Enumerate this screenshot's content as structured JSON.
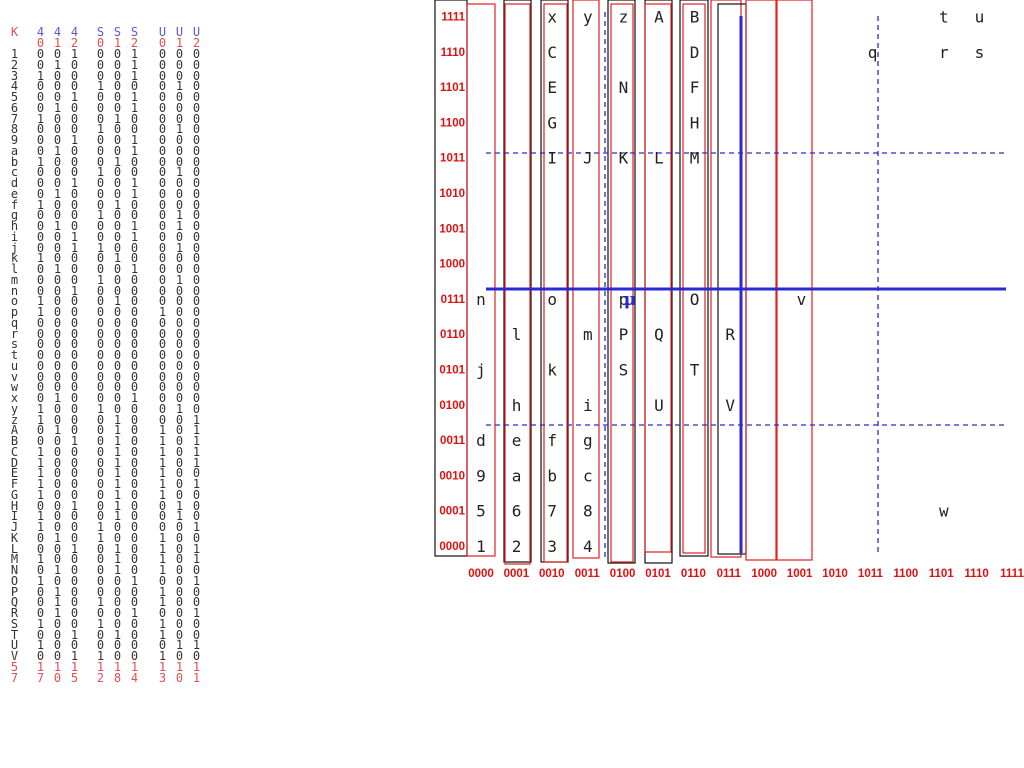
{
  "table": {
    "headers": [
      {
        "top": "K",
        "sub": "",
        "color": "#e05050"
      },
      {
        "top": "4",
        "sub": "0",
        "color": "#5a5ad8"
      },
      {
        "top": "4",
        "sub": "1",
        "color": "#5a5ad8"
      },
      {
        "top": "4",
        "sub": "2",
        "color": "#5a5ad8"
      },
      {
        "top": "S",
        "sub": "0",
        "color": "#5a5ad8"
      },
      {
        "top": "S",
        "sub": "1",
        "color": "#5a5ad8"
      },
      {
        "top": "S",
        "sub": "2",
        "color": "#5a5ad8"
      },
      {
        "top": "U",
        "sub": "0",
        "color": "#5a5ad8"
      },
      {
        "top": "U",
        "sub": "1",
        "color": "#5a5ad8"
      },
      {
        "top": "U",
        "sub": "2",
        "color": "#5a5ad8"
      }
    ],
    "rows": [
      [
        "1",
        "0",
        "0",
        "1",
        "0",
        "0",
        "1",
        "0",
        "0",
        "0"
      ],
      [
        "2",
        "0",
        "1",
        "0",
        "0",
        "0",
        "1",
        "0",
        "0",
        "0"
      ],
      [
        "3",
        "1",
        "0",
        "0",
        "0",
        "0",
        "1",
        "0",
        "0",
        "0"
      ],
      [
        "4",
        "0",
        "0",
        "0",
        "1",
        "0",
        "0",
        "0",
        "1",
        "0"
      ],
      [
        "5",
        "0",
        "0",
        "1",
        "0",
        "0",
        "1",
        "0",
        "0",
        "0"
      ],
      [
        "6",
        "0",
        "1",
        "0",
        "0",
        "0",
        "1",
        "0",
        "0",
        "0"
      ],
      [
        "7",
        "1",
        "0",
        "0",
        "0",
        "1",
        "0",
        "0",
        "0",
        "0"
      ],
      [
        "8",
        "0",
        "0",
        "0",
        "1",
        "0",
        "0",
        "0",
        "1",
        "0"
      ],
      [
        "9",
        "0",
        "0",
        "1",
        "0",
        "0",
        "1",
        "0",
        "0",
        "0"
      ],
      [
        "a",
        "0",
        "1",
        "0",
        "0",
        "0",
        "1",
        "0",
        "0",
        "0"
      ],
      [
        "b",
        "1",
        "0",
        "0",
        "0",
        "1",
        "0",
        "0",
        "0",
        "0"
      ],
      [
        "c",
        "0",
        "0",
        "0",
        "1",
        "0",
        "0",
        "0",
        "1",
        "0"
      ],
      [
        "d",
        "0",
        "0",
        "1",
        "0",
        "0",
        "1",
        "0",
        "0",
        "0"
      ],
      [
        "e",
        "0",
        "1",
        "0",
        "0",
        "0",
        "1",
        "0",
        "0",
        "0"
      ],
      [
        "f",
        "1",
        "0",
        "0",
        "0",
        "1",
        "0",
        "0",
        "0",
        "0"
      ],
      [
        "g",
        "0",
        "0",
        "0",
        "1",
        "0",
        "0",
        "0",
        "1",
        "0"
      ],
      [
        "h",
        "0",
        "1",
        "0",
        "0",
        "0",
        "1",
        "0",
        "1",
        "0"
      ],
      [
        "i",
        "0",
        "0",
        "1",
        "0",
        "0",
        "1",
        "0",
        "0",
        "0"
      ],
      [
        "j",
        "0",
        "0",
        "1",
        "1",
        "0",
        "0",
        "0",
        "1",
        "0"
      ],
      [
        "k",
        "1",
        "0",
        "0",
        "0",
        "1",
        "0",
        "0",
        "0",
        "0"
      ],
      [
        "l",
        "0",
        "1",
        "0",
        "0",
        "0",
        "1",
        "0",
        "0",
        "0"
      ],
      [
        "m",
        "0",
        "0",
        "0",
        "1",
        "0",
        "0",
        "0",
        "1",
        "0"
      ],
      [
        "n",
        "0",
        "0",
        "1",
        "0",
        "0",
        "0",
        "0",
        "0",
        "0"
      ],
      [
        "o",
        "1",
        "0",
        "0",
        "0",
        "1",
        "0",
        "0",
        "0",
        "0"
      ],
      [
        "p",
        "1",
        "0",
        "0",
        "0",
        "0",
        "0",
        "1",
        "0",
        "0"
      ],
      [
        "q",
        "0",
        "0",
        "0",
        "0",
        "0",
        "0",
        "0",
        "0",
        "0"
      ],
      [
        "r",
        "0",
        "0",
        "0",
        "0",
        "0",
        "0",
        "0",
        "0",
        "0"
      ],
      [
        "s",
        "0",
        "0",
        "0",
        "0",
        "0",
        "0",
        "0",
        "0",
        "0"
      ],
      [
        "t",
        "0",
        "0",
        "0",
        "0",
        "0",
        "0",
        "0",
        "0",
        "0"
      ],
      [
        "u",
        "0",
        "0",
        "0",
        "0",
        "0",
        "0",
        "0",
        "0",
        "0"
      ],
      [
        "v",
        "0",
        "0",
        "0",
        "0",
        "0",
        "0",
        "0",
        "0",
        "0"
      ],
      [
        "w",
        "0",
        "0",
        "0",
        "0",
        "0",
        "0",
        "0",
        "0",
        "0"
      ],
      [
        "x",
        "0",
        "1",
        "0",
        "0",
        "0",
        "1",
        "0",
        "0",
        "0"
      ],
      [
        "y",
        "1",
        "0",
        "0",
        "1",
        "0",
        "0",
        "0",
        "1",
        "0"
      ],
      [
        "z",
        "1",
        "0",
        "0",
        "0",
        "1",
        "0",
        "0",
        "0",
        "1"
      ],
      [
        "A",
        "0",
        "1",
        "0",
        "0",
        "1",
        "0",
        "1",
        "0",
        "1"
      ],
      [
        "B",
        "0",
        "0",
        "1",
        "0",
        "1",
        "0",
        "1",
        "0",
        "1"
      ],
      [
        "C",
        "1",
        "0",
        "0",
        "0",
        "1",
        "0",
        "1",
        "0",
        "1"
      ],
      [
        "D",
        "1",
        "0",
        "0",
        "0",
        "1",
        "0",
        "1",
        "0",
        "1"
      ],
      [
        "E",
        "1",
        "0",
        "0",
        "0",
        "1",
        "0",
        "1",
        "0",
        "0"
      ],
      [
        "F",
        "1",
        "0",
        "0",
        "0",
        "1",
        "0",
        "1",
        "0",
        "1"
      ],
      [
        "G",
        "1",
        "0",
        "0",
        "0",
        "1",
        "0",
        "1",
        "0",
        "0"
      ],
      [
        "H",
        "0",
        "0",
        "1",
        "0",
        "1",
        "0",
        "0",
        "1",
        "0"
      ],
      [
        "I",
        "1",
        "0",
        "0",
        "0",
        "1",
        "0",
        "0",
        "1",
        "0"
      ],
      [
        "J",
        "1",
        "0",
        "0",
        "1",
        "0",
        "0",
        "0",
        "0",
        "1"
      ],
      [
        "K",
        "0",
        "1",
        "0",
        "1",
        "0",
        "0",
        "1",
        "0",
        "0"
      ],
      [
        "L",
        "0",
        "0",
        "1",
        "0",
        "1",
        "0",
        "1",
        "0",
        "1"
      ],
      [
        "M",
        "1",
        "0",
        "0",
        "0",
        "1",
        "0",
        "1",
        "0",
        "1"
      ],
      [
        "N",
        "0",
        "1",
        "0",
        "0",
        "1",
        "0",
        "1",
        "0",
        "0"
      ],
      [
        "O",
        "1",
        "0",
        "0",
        "0",
        "0",
        "1",
        "0",
        "0",
        "1"
      ],
      [
        "P",
        "0",
        "1",
        "0",
        "0",
        "0",
        "0",
        "1",
        "0",
        "0"
      ],
      [
        "Q",
        "0",
        "1",
        "0",
        "1",
        "0",
        "0",
        "1",
        "0",
        "0"
      ],
      [
        "R",
        "0",
        "1",
        "0",
        "0",
        "0",
        "1",
        "0",
        "0",
        "1"
      ],
      [
        "S",
        "1",
        "0",
        "0",
        "1",
        "0",
        "0",
        "1",
        "0",
        "0"
      ],
      [
        "T",
        "0",
        "0",
        "1",
        "0",
        "1",
        "0",
        "1",
        "0",
        "0"
      ],
      [
        "U",
        "1",
        "0",
        "0",
        "0",
        "0",
        "0",
        "0",
        "1",
        "1"
      ],
      [
        "V",
        "0",
        "0",
        "1",
        "1",
        "0",
        "0",
        "1",
        "0",
        "0"
      ]
    ],
    "footer": [
      {
        "a": "5",
        "b": "7",
        "color": "#e05050"
      },
      {
        "a": "1",
        "b": "7",
        "color": "#e05050"
      },
      {
        "a": "1",
        "b": "0",
        "color": "#e05050"
      },
      {
        "a": "1",
        "b": "5",
        "color": "#e05050"
      },
      {
        "a": "1",
        "b": "2",
        "color": "#e05050"
      },
      {
        "a": "1",
        "b": "8",
        "color": "#e05050"
      },
      {
        "a": "1",
        "b": "4",
        "color": "#e05050"
      },
      {
        "a": "1",
        "b": "3",
        "color": "#e05050"
      },
      {
        "a": "1",
        "b": "0",
        "color": "#e05050"
      },
      {
        "a": "1",
        "b": "1",
        "color": "#e05050"
      }
    ]
  },
  "grid": {
    "row_codes": [
      "0000",
      "0001",
      "0010",
      "0011",
      "0100",
      "0101",
      "0110",
      "0111",
      "1000",
      "1001",
      "1010",
      "1011",
      "1100",
      "1101",
      "1110",
      "1111"
    ],
    "col_codes": [
      "0000",
      "0001",
      "0010",
      "0011",
      "0100",
      "0101",
      "0110",
      "0111",
      "1000",
      "1001",
      "1010",
      "1011",
      "1100",
      "1101",
      "1110",
      "1111"
    ],
    "code_color": "#e01010",
    "cells": [
      {
        "t": "1",
        "c": 0,
        "r": 0
      },
      {
        "t": "5",
        "c": 0,
        "r": 1
      },
      {
        "t": "9",
        "c": 0,
        "r": 2
      },
      {
        "t": "d",
        "c": 0,
        "r": 3
      },
      {
        "t": "j",
        "c": 0,
        "r": 5
      },
      {
        "t": "n",
        "c": 0,
        "r": 7
      },
      {
        "t": "2",
        "c": 1,
        "r": 0
      },
      {
        "t": "6",
        "c": 1,
        "r": 1
      },
      {
        "t": "a",
        "c": 1,
        "r": 2
      },
      {
        "t": "e",
        "c": 1,
        "r": 3
      },
      {
        "t": "h",
        "c": 1,
        "r": 4
      },
      {
        "t": "l",
        "c": 1,
        "r": 6
      },
      {
        "t": "3",
        "c": 2,
        "r": 0
      },
      {
        "t": "7",
        "c": 2,
        "r": 1
      },
      {
        "t": "b",
        "c": 2,
        "r": 2
      },
      {
        "t": "f",
        "c": 2,
        "r": 3
      },
      {
        "t": "k",
        "c": 2,
        "r": 5
      },
      {
        "t": "o",
        "c": 2,
        "r": 7
      },
      {
        "t": "I",
        "c": 2,
        "r": 11
      },
      {
        "t": "G",
        "c": 2,
        "r": 12
      },
      {
        "t": "E",
        "c": 2,
        "r": 13
      },
      {
        "t": "C",
        "c": 2,
        "r": 14
      },
      {
        "t": "x",
        "c": 2,
        "r": 15
      },
      {
        "t": "4",
        "c": 3,
        "r": 0
      },
      {
        "t": "8",
        "c": 3,
        "r": 1
      },
      {
        "t": "c",
        "c": 3,
        "r": 2
      },
      {
        "t": "g",
        "c": 3,
        "r": 3
      },
      {
        "t": "i",
        "c": 3,
        "r": 4
      },
      {
        "t": "m",
        "c": 3,
        "r": 6
      },
      {
        "t": "J",
        "c": 3,
        "r": 11
      },
      {
        "t": "y",
        "c": 3,
        "r": 15
      },
      {
        "t": "S",
        "c": 4,
        "r": 5
      },
      {
        "t": "P",
        "c": 4,
        "r": 6
      },
      {
        "t": "p",
        "c": 4,
        "r": 7
      },
      {
        "t": "K",
        "c": 4,
        "r": 11
      },
      {
        "t": "N",
        "c": 4,
        "r": 13
      },
      {
        "t": "z",
        "c": 4,
        "r": 15
      },
      {
        "t": "U",
        "c": 5,
        "r": 4
      },
      {
        "t": "Q",
        "c": 5,
        "r": 6
      },
      {
        "t": "L",
        "c": 5,
        "r": 11
      },
      {
        "t": "A",
        "c": 5,
        "r": 15
      },
      {
        "t": "T",
        "c": 6,
        "r": 5
      },
      {
        "t": "O",
        "c": 6,
        "r": 7
      },
      {
        "t": "M",
        "c": 6,
        "r": 11
      },
      {
        "t": "H",
        "c": 6,
        "r": 12
      },
      {
        "t": "F",
        "c": 6,
        "r": 13
      },
      {
        "t": "D",
        "c": 6,
        "r": 14
      },
      {
        "t": "B",
        "c": 6,
        "r": 15
      },
      {
        "t": "V",
        "c": 7,
        "r": 4
      },
      {
        "t": "R",
        "c": 7,
        "r": 6
      },
      {
        "t": "v",
        "c": 9,
        "r": 7
      },
      {
        "t": "q",
        "c": 11,
        "r": 14
      },
      {
        "t": "t",
        "c": 13,
        "r": 15
      },
      {
        "t": "u",
        "c": 14,
        "r": 15
      },
      {
        "t": "r",
        "c": 13,
        "r": 14
      },
      {
        "t": "s",
        "c": 14,
        "r": 14
      },
      {
        "t": "w",
        "c": 13,
        "r": 1
      }
    ],
    "mu_label": "μ",
    "mu_color": "#2a2ad0",
    "axis_color": "#2a2ad0",
    "box_colors": {
      "black": "#111111",
      "red": "#e02020"
    }
  }
}
